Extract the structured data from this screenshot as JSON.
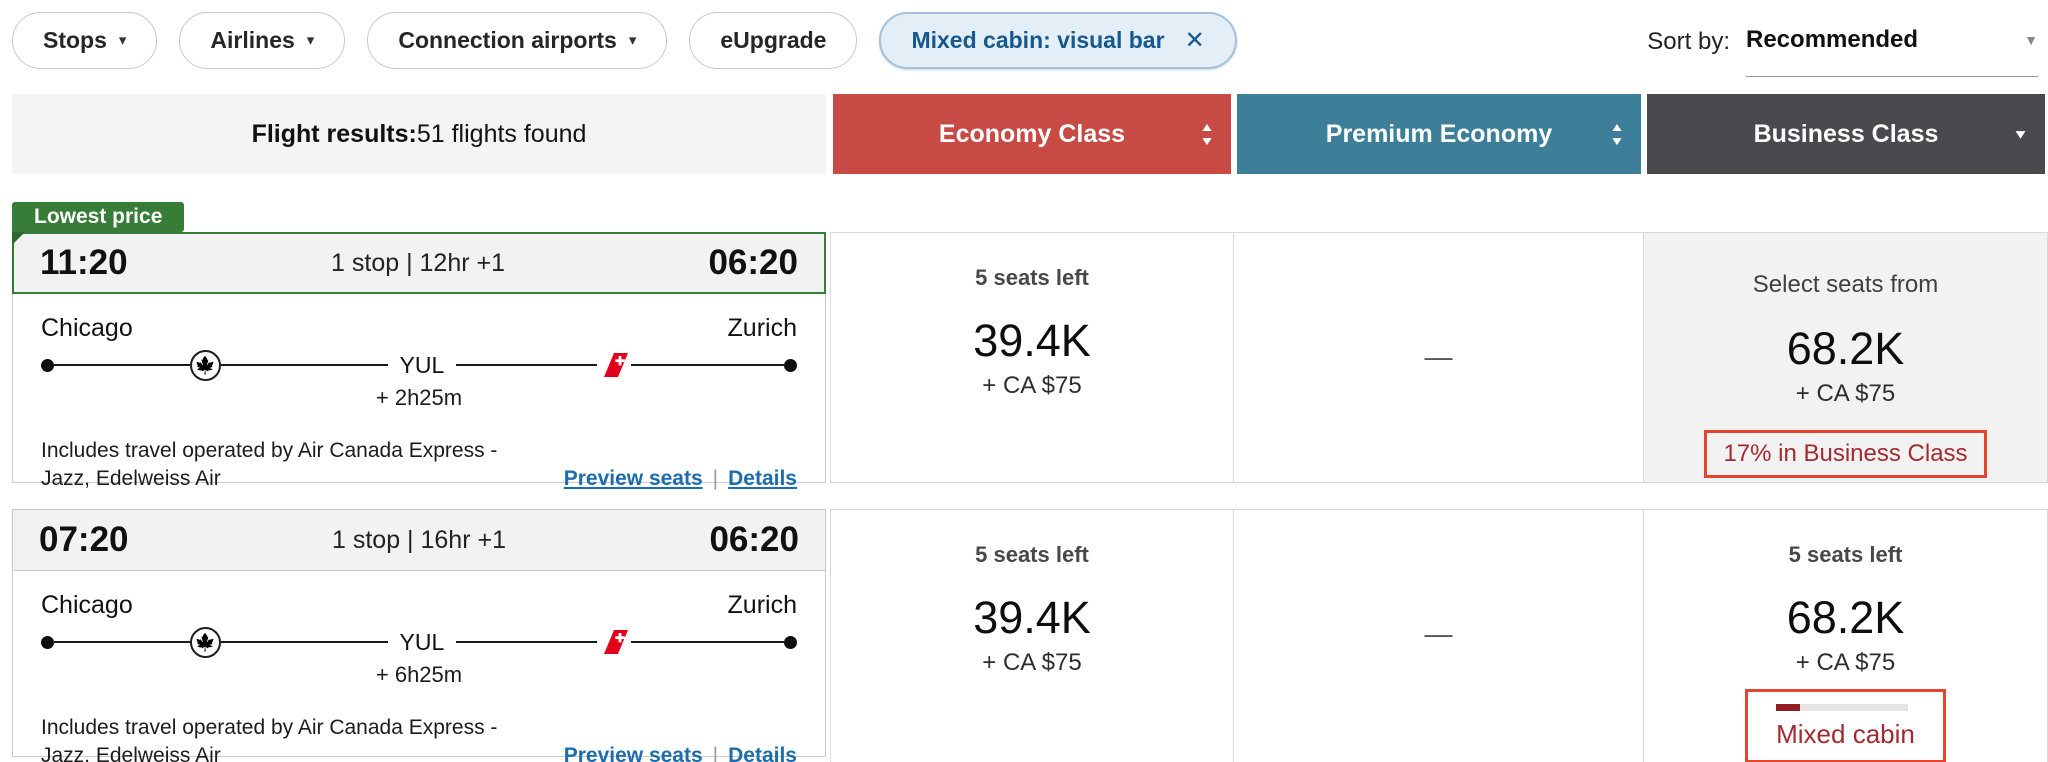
{
  "filters": {
    "pills": [
      {
        "label": "Stops",
        "has_caret": true
      },
      {
        "label": "Airlines",
        "has_caret": true
      },
      {
        "label": "Connection airports",
        "has_caret": true
      },
      {
        "label": "eUpgrade",
        "has_caret": false
      },
      {
        "label": "Mixed cabin: visual bar",
        "active": true,
        "close_icon": "✕"
      }
    ],
    "sort": {
      "label": "Sort by:",
      "value": "Recommended"
    }
  },
  "results_header": {
    "summary_bold": "Flight results:",
    "summary_rest": "51 flights found",
    "columns": [
      {
        "label": "Economy Class",
        "color": "#c84a44"
      },
      {
        "label": "Premium Economy",
        "color": "#3d7e99"
      },
      {
        "label": "Business Class",
        "color": "#4a4a4e"
      }
    ]
  },
  "rows": [
    {
      "badge": "Lowest price",
      "depart": "11:20",
      "arrive": "06:20",
      "summary": "1 stop | 12hr +1",
      "origin": "Chicago",
      "destination": "Zurich",
      "stop_code": "YUL",
      "layover": "+ 2h25m",
      "operated_by": "Includes travel operated by Air Canada Express - Jazz, Edelweiss Air",
      "links": {
        "preview": "Preview seats",
        "separator": "|",
        "details": "Details"
      },
      "economy": {
        "seats": "5 seats left",
        "points": "39.4K",
        "cash": "+ CA $75"
      },
      "premium": {
        "value": "—"
      },
      "business": {
        "seats": "Select seats from",
        "points": "68.2K",
        "cash": "+ CA $75",
        "note": "17% in Business Class"
      }
    },
    {
      "depart": "07:20",
      "arrive": "06:20",
      "summary": "1 stop | 16hr +1",
      "origin": "Chicago",
      "destination": "Zurich",
      "stop_code": "YUL",
      "layover": "+ 6h25m",
      "operated_by": "Includes travel operated by Air Canada Express - Jazz, Edelweiss Air",
      "links": {
        "preview": "Preview seats",
        "separator": "|",
        "details": "Details"
      },
      "economy": {
        "seats": "5 seats left",
        "points": "39.4K",
        "cash": "+ CA $75"
      },
      "premium": {
        "value": "—"
      },
      "business": {
        "seats": "5 seats left",
        "points": "68.2K",
        "cash": "+ CA $75",
        "note": "Mixed cabin",
        "bar_fill_percent": 18
      }
    }
  ],
  "colors": {
    "economy_header": "#c84a44",
    "premium_header": "#3d7e99",
    "business_header": "#4a4a4e",
    "lowest_price_green": "#377d37",
    "active_pill_text_blue": "#17588e",
    "link_blue": "#1c6dad",
    "alert_border_red": "#e8432d",
    "alert_text_red": "#a32a30",
    "bar_fill_red": "#8f1d21",
    "next_row_peek_teal": "#33708f",
    "swiss_tail_red": "#e2001a"
  }
}
